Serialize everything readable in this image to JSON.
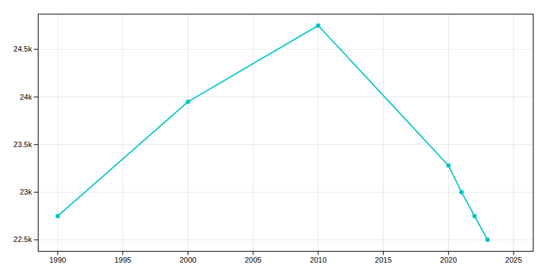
{
  "chart_data": {
    "type": "line",
    "x": [
      1990,
      2000,
      2010,
      2020,
      2021,
      2022,
      2023
    ],
    "values": [
      22750,
      23950,
      24750,
      23280,
      23000,
      22750,
      22500
    ],
    "color": "#00c5c8",
    "marker": "circle",
    "xlim": [
      1988.5,
      2026.5
    ],
    "ylim": [
      22380,
      24870
    ],
    "xticks": [
      1990,
      1995,
      2000,
      2005,
      2010,
      2015,
      2020,
      2025
    ],
    "yticks": [
      {
        "value": 22500,
        "label": "22.5k"
      },
      {
        "value": 23000,
        "label": "23k"
      },
      {
        "value": 23500,
        "label": "23.5k"
      },
      {
        "value": 24000,
        "label": "24k"
      },
      {
        "value": 24500,
        "label": "24.5k"
      }
    ],
    "grid": true
  }
}
